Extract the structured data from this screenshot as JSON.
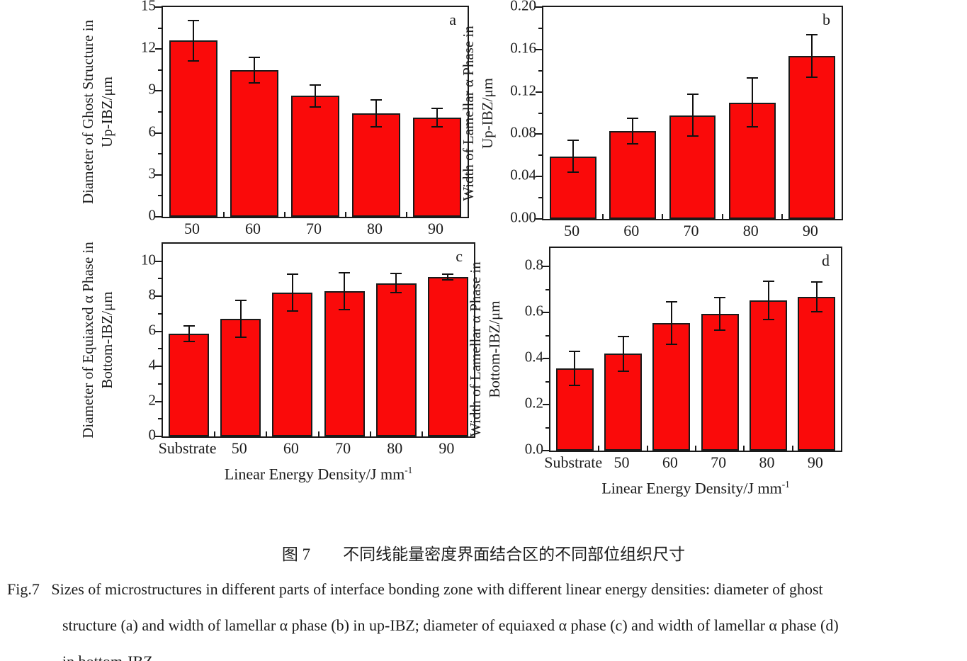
{
  "figure": {
    "background": "#ffffff"
  },
  "colors": {
    "bar_fill": "#fa0a0a",
    "bar_border": "#1a1a1a",
    "error_bar": "#111111",
    "text": "#1c1c1c"
  },
  "caption": {
    "zh": "图 7　　不同线能量密度界面结合区的不同部位组织尺寸",
    "en_lines": [
      "Fig.7   Sizes of microstructures in different parts of interface bonding zone with different linear energy densities: diameter of ghost",
      "structure (a) and width of lamellar α phase (b) in up-IBZ; diameter of equiaxed α phase (c) and width of lamellar α phase (d)",
      "in bottom-IBZ"
    ]
  },
  "chart_data": [
    {
      "type": "bar",
      "panel_label": "a",
      "ylabel_lines": [
        "Diameter of Ghost Structure in",
        "Up-IBZ/μm"
      ],
      "categories": [
        "50",
        "60",
        "70",
        "80",
        "90"
      ],
      "values": [
        12.6,
        10.5,
        8.65,
        7.4,
        7.1
      ],
      "errors": [
        1.45,
        0.9,
        0.8,
        0.95,
        0.65
      ],
      "ylim": [
        0,
        15
      ],
      "yticks": [
        0,
        3,
        6,
        9,
        12,
        15
      ],
      "ytick_labels": [
        "0",
        "3",
        "6",
        "9",
        "12",
        "15"
      ],
      "xlabel": "",
      "xlabel_sup": "",
      "grid": false,
      "legend": "none"
    },
    {
      "type": "bar",
      "panel_label": "b",
      "ylabel_lines": [
        "Width of Lamellar α Phase in",
        "Up-IBZ/μm"
      ],
      "categories": [
        "50",
        "60",
        "70",
        "80",
        "90"
      ],
      "values": [
        0.059,
        0.083,
        0.098,
        0.11,
        0.154
      ],
      "errors": [
        0.015,
        0.012,
        0.02,
        0.023,
        0.02
      ],
      "ylim": [
        0,
        0.2
      ],
      "yticks": [
        0,
        0.04,
        0.08,
        0.12,
        0.16,
        0.2
      ],
      "ytick_labels": [
        "0.00",
        "0.04",
        "0.08",
        "0.12",
        "0.16",
        "0.20"
      ],
      "xlabel": "",
      "xlabel_sup": "",
      "grid": false,
      "legend": "none"
    },
    {
      "type": "bar",
      "panel_label": "c",
      "ylabel_lines": [
        "Diameter of Equiaxed α Phase in",
        "Bottom-IBZ/μm"
      ],
      "categories": [
        "Substrate",
        "50",
        "60",
        "70",
        "80",
        "90"
      ],
      "values": [
        5.85,
        6.7,
        8.2,
        8.3,
        8.75,
        9.1
      ],
      "errors": [
        0.45,
        1.05,
        1.05,
        1.05,
        0.55,
        0.15
      ],
      "ylim": [
        0,
        11
      ],
      "yticks": [
        0,
        2,
        4,
        6,
        8,
        10
      ],
      "ytick_labels": [
        "0",
        "2",
        "4",
        "6",
        "8",
        "10"
      ],
      "xlabel": "Linear Energy Density/J mm",
      "xlabel_sup": "-1",
      "grid": false,
      "legend": "none"
    },
    {
      "type": "bar",
      "panel_label": "d",
      "ylabel_lines": [
        "Width of Lamellar α Phase in",
        "Bottom-IBZ/μm"
      ],
      "categories": [
        "Substrate",
        "50",
        "60",
        "70",
        "80",
        "90"
      ],
      "values": [
        0.357,
        0.421,
        0.555,
        0.595,
        0.652,
        0.668
      ],
      "errors": [
        0.075,
        0.075,
        0.092,
        0.071,
        0.082,
        0.065
      ],
      "ylim": [
        0,
        0.88
      ],
      "yticks": [
        0,
        0.2,
        0.4,
        0.6,
        0.8
      ],
      "ytick_labels": [
        "0.0",
        "0.2",
        "0.4",
        "0.6",
        "0.8"
      ],
      "xlabel": "Linear Energy Density/J mm",
      "xlabel_sup": "-1",
      "grid": false,
      "legend": "none"
    }
  ]
}
